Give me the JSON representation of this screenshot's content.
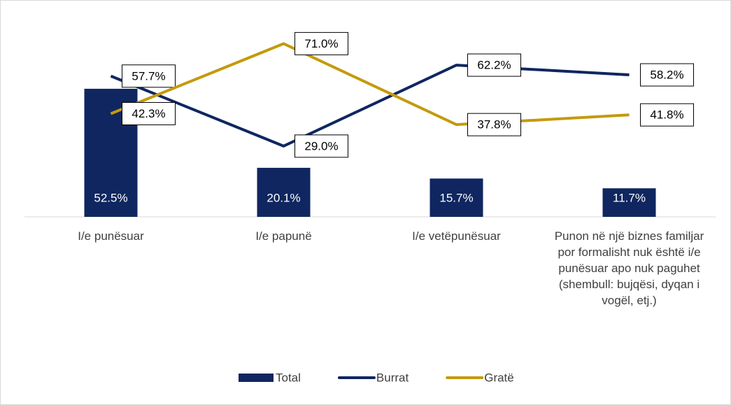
{
  "chart_data": {
    "type": "bar",
    "categories": [
      "I/e punësuar",
      "I/e papunë",
      "I/e vetëpunësuar",
      "Punon në një biznes familjar por formalisht nuk është i/e punësuar apo nuk paguhet (shembull: bujqësi, dyqan i vogël, etj.)"
    ],
    "series": [
      {
        "name": "Total",
        "type": "bar",
        "color": "#0f2660",
        "values": [
          52.5,
          20.1,
          15.7,
          11.7
        ],
        "value_labels": [
          "52.5%",
          "20.1%",
          "15.7%",
          "11.7%"
        ]
      },
      {
        "name": "Burrat",
        "type": "line",
        "color": "#0f2660",
        "values": [
          57.7,
          29.0,
          62.2,
          58.2
        ],
        "value_labels": [
          "57.7%",
          "29.0%",
          "62.2%",
          "58.2%"
        ]
      },
      {
        "name": "Gratë",
        "type": "line",
        "color": "#c49a0c",
        "values": [
          42.3,
          71.0,
          37.8,
          41.8
        ],
        "value_labels": [
          "42.3%",
          "71.0%",
          "37.8%",
          "41.8%"
        ]
      }
    ],
    "ylim": [
      0,
      80
    ],
    "legend": "bottom"
  }
}
